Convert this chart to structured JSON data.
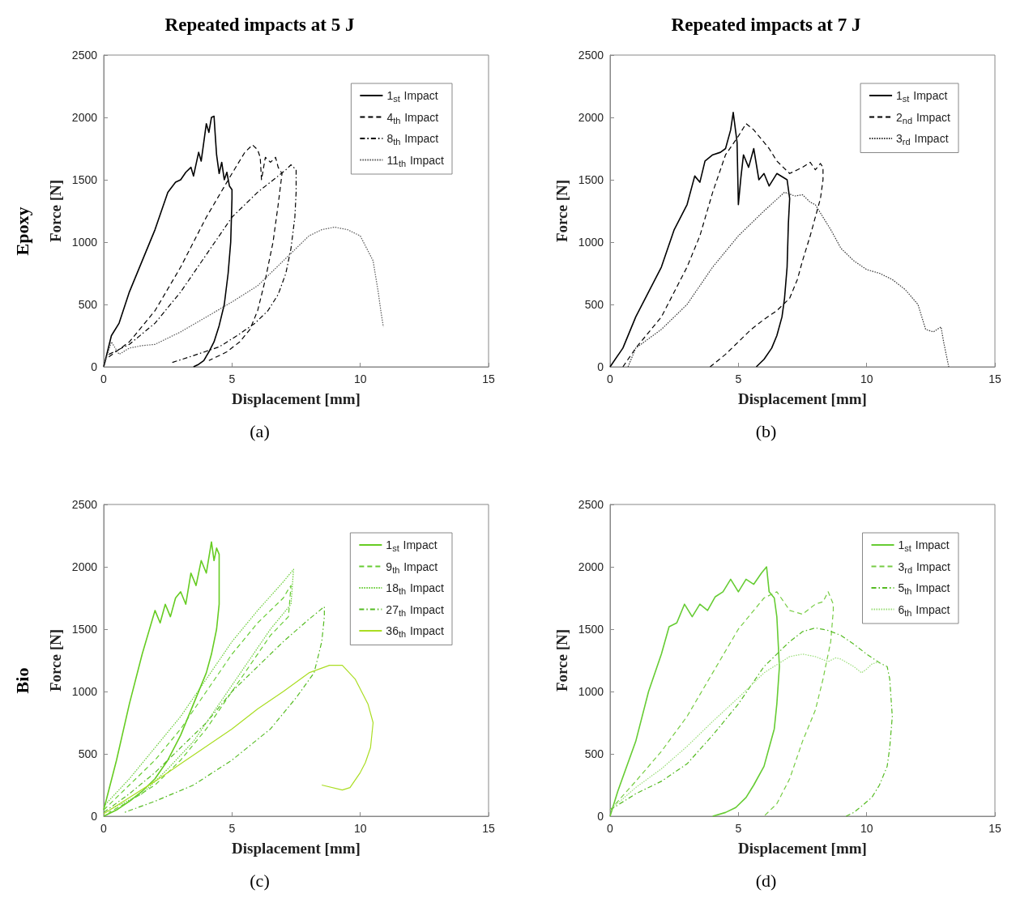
{
  "chart_data": [
    {
      "type": "line",
      "title": "Repeated impacts at 5 J",
      "subtitle": "(a)",
      "annotations": [
        "Epoxy"
      ],
      "xlabel": "Displacement [mm]",
      "ylabel": "Force [N]",
      "xlim": [
        0,
        15
      ],
      "xticks": [
        0,
        5,
        10,
        15
      ],
      "ylim": [
        0,
        2500
      ],
      "yticks": [
        0,
        500,
        1000,
        1500,
        2000,
        2500
      ],
      "grid": false,
      "legend": "top right",
      "marker": "none",
      "series": [
        {
          "name": "1$_{st}$ Impact",
          "color": "#000000",
          "line_style": "solid",
          "x": [
            0,
            0.3,
            0.6,
            1,
            1.5,
            2,
            2.5,
            2.8,
            3,
            3.2,
            3.4,
            3.5,
            3.7,
            3.8,
            3.9,
            4.0,
            4.1,
            4.2,
            4.3,
            4.35,
            4.4,
            4.5,
            4.6,
            4.7,
            4.8,
            4.9,
            5.0,
            5.0,
            4.95,
            4.85,
            4.7,
            4.5,
            4.3,
            4.1,
            3.9,
            3.7,
            3.5
          ],
          "values": [
            0,
            250,
            350,
            600,
            850,
            1100,
            1400,
            1480,
            1500,
            1560,
            1600,
            1530,
            1720,
            1650,
            1800,
            1950,
            1880,
            2000,
            2010,
            1850,
            1700,
            1550,
            1640,
            1500,
            1560,
            1450,
            1420,
            1350,
            1000,
            750,
            500,
            330,
            200,
            120,
            50,
            20,
            0
          ]
        },
        {
          "name": "4$_{th}$ Impact",
          "color": "#000000",
          "line_style": "dashed",
          "x": [
            0.2,
            1,
            2,
            3,
            4,
            5,
            5.5,
            5.8,
            6.0,
            6.1,
            6.15,
            6.3,
            6.5,
            6.7,
            6.8,
            6.95,
            6.8,
            6.6,
            6.3,
            6.0,
            5.7,
            5.3,
            4.8,
            4.1
          ],
          "values": [
            80,
            200,
            450,
            800,
            1200,
            1550,
            1720,
            1780,
            1740,
            1680,
            1500,
            1680,
            1640,
            1680,
            1600,
            1550,
            1300,
            1000,
            700,
            450,
            300,
            200,
            120,
            50
          ]
        },
        {
          "name": "8$_{th}$ Impact",
          "color": "#000000",
          "line_style": "dashdot",
          "x": [
            0.2,
            1,
            2,
            3,
            4,
            5,
            6,
            6.8,
            7.1,
            7.3,
            7.5,
            7.5,
            7.45,
            7.3,
            7.1,
            6.8,
            6.4,
            5.9,
            5.2,
            4.5,
            3.5,
            2.6
          ],
          "values": [
            100,
            180,
            350,
            600,
            900,
            1200,
            1400,
            1530,
            1580,
            1620,
            1580,
            1400,
            1200,
            950,
            750,
            580,
            450,
            350,
            250,
            160,
            90,
            30
          ]
        },
        {
          "name": "11$_{th}$ Impact",
          "color": "#555555",
          "line_style": "dotted",
          "x": [
            0,
            0.3,
            0.6,
            1,
            1.5,
            2,
            3,
            4,
            5,
            6,
            7,
            7.5,
            8,
            8.5,
            9,
            9.5,
            10,
            10.3,
            10.5,
            10.7,
            10.8,
            10.9
          ],
          "values": [
            0,
            200,
            100,
            150,
            170,
            180,
            280,
            400,
            520,
            650,
            850,
            950,
            1050,
            1100,
            1120,
            1100,
            1050,
            930,
            850,
            600,
            450,
            320
          ]
        }
      ]
    },
    {
      "type": "line",
      "title": "Repeated impacts at 7 J",
      "subtitle": "(b)",
      "xlabel": "Displacement [mm]",
      "ylabel": "Force [N]",
      "xlim": [
        0,
        15
      ],
      "xticks": [
        0,
        5,
        10,
        15
      ],
      "ylim": [
        0,
        2500
      ],
      "yticks": [
        0,
        500,
        1000,
        1500,
        2000,
        2500
      ],
      "grid": false,
      "legend": "top right",
      "marker": "none",
      "series": [
        {
          "name": "1$_{st}$ Impact",
          "color": "#000000",
          "line_style": "solid",
          "x": [
            0,
            0.5,
            1,
            1.5,
            2,
            2.5,
            3,
            3.3,
            3.5,
            3.7,
            4,
            4.3,
            4.5,
            4.7,
            4.8,
            4.95,
            5.0,
            5.1,
            5.2,
            5.4,
            5.6,
            5.8,
            6,
            6.2,
            6.5,
            6.9,
            7.0,
            6.95,
            6.9,
            6.8,
            6.7,
            6.5,
            6.3,
            6.0,
            5.7
          ],
          "values": [
            0,
            150,
            400,
            600,
            800,
            1100,
            1300,
            1530,
            1480,
            1650,
            1700,
            1720,
            1750,
            1900,
            2040,
            1800,
            1300,
            1520,
            1700,
            1600,
            1750,
            1500,
            1550,
            1450,
            1550,
            1500,
            1350,
            1150,
            800,
            550,
            400,
            250,
            150,
            60,
            0
          ]
        },
        {
          "name": "2$_{nd}$ Impact",
          "color": "#000000",
          "line_style": "dashed",
          "x": [
            0.5,
            1,
            2,
            3,
            3.5,
            4,
            4.5,
            5,
            5.3,
            5.6,
            5.8,
            6.2,
            6.5,
            7,
            7.3,
            7.5,
            7.8,
            8,
            8.2,
            8.3,
            8.3,
            8.2,
            8,
            7.8,
            7.5,
            7.3,
            7,
            6.5,
            6,
            5.5,
            5,
            4.5,
            3.9
          ],
          "values": [
            0,
            150,
            400,
            800,
            1050,
            1400,
            1700,
            1850,
            1950,
            1900,
            1850,
            1750,
            1650,
            1550,
            1580,
            1600,
            1640,
            1580,
            1630,
            1600,
            1500,
            1350,
            1200,
            1050,
            850,
            700,
            550,
            450,
            380,
            300,
            200,
            100,
            0
          ]
        },
        {
          "name": "3$_{rd}$ Impact",
          "color": "#333333",
          "line_style": "dotted",
          "x": [
            0.7,
            1,
            2,
            3,
            4,
            5,
            6,
            6.8,
            7.2,
            7.5,
            7.8,
            8,
            8.3,
            8.6,
            9,
            9.5,
            10,
            10.5,
            11,
            11.5,
            12,
            12.3,
            12.6,
            12.9,
            13.0,
            13.2
          ],
          "values": [
            0,
            150,
            300,
            500,
            800,
            1050,
            1250,
            1400,
            1370,
            1380,
            1320,
            1300,
            1200,
            1100,
            950,
            850,
            780,
            750,
            700,
            620,
            500,
            300,
            280,
            320,
            200,
            0
          ]
        }
      ]
    },
    {
      "type": "line",
      "subtitle": "(c)",
      "annotations": [
        "Bio"
      ],
      "xlabel": "Displacement [mm]",
      "ylabel": "Force [N]",
      "xlim": [
        0,
        15
      ],
      "xticks": [
        0,
        5,
        10,
        15
      ],
      "ylim": [
        0,
        2500
      ],
      "yticks": [
        0,
        500,
        1000,
        1500,
        2000,
        2500
      ],
      "grid": false,
      "legend": "top right",
      "marker": "none",
      "series": [
        {
          "name": "1$_{st}$ Impact",
          "color": "#66cc22",
          "line_style": "solid",
          "x": [
            0,
            0.5,
            1,
            1.5,
            2,
            2.2,
            2.4,
            2.6,
            2.8,
            3,
            3.2,
            3.4,
            3.6,
            3.8,
            4,
            4.2,
            4.3,
            4.4,
            4.5,
            4.5,
            4.4,
            4.2,
            4,
            3.5,
            3,
            2.5,
            2,
            1.5,
            1,
            0.5,
            0
          ],
          "values": [
            50,
            450,
            900,
            1300,
            1650,
            1550,
            1700,
            1600,
            1750,
            1800,
            1700,
            1950,
            1850,
            2050,
            1950,
            2200,
            2050,
            2150,
            2100,
            1700,
            1500,
            1300,
            1150,
            900,
            650,
            450,
            300,
            200,
            120,
            50,
            0
          ]
        },
        {
          "name": "9$_{th}$ Impact",
          "color": "#66cc33",
          "line_style": "dashed",
          "x": [
            0,
            1,
            2,
            3,
            4,
            5,
            6,
            7,
            7.2,
            7.3,
            7.2,
            6.5,
            6,
            5,
            4,
            3,
            2,
            1,
            0.2
          ],
          "values": [
            50,
            250,
            450,
            700,
            1000,
            1300,
            1550,
            1750,
            1820,
            1850,
            1600,
            1450,
            1300,
            1000,
            700,
            450,
            250,
            120,
            30
          ]
        },
        {
          "name": "18$_{th}$ Impact",
          "color": "#66cc33",
          "line_style": "dotted",
          "x": [
            0,
            1,
            2,
            3,
            4,
            5,
            6,
            7,
            7.4,
            7.3,
            6.5,
            5.5,
            4.5,
            3.5,
            2.5,
            1.5,
            0.3
          ],
          "values": [
            80,
            300,
            550,
            800,
            1100,
            1400,
            1650,
            1880,
            1980,
            1700,
            1500,
            1200,
            900,
            600,
            380,
            180,
            60
          ]
        },
        {
          "name": "27$_{th}$ Impact",
          "color": "#55bb22",
          "line_style": "dashdot",
          "x": [
            0,
            1,
            2,
            3,
            4,
            5,
            6,
            7,
            8,
            8.6,
            8.6,
            8.5,
            8.2,
            7.5,
            6.5,
            5,
            3.5,
            2,
            0.8
          ],
          "values": [
            30,
            180,
            350,
            550,
            750,
            1000,
            1200,
            1400,
            1580,
            1680,
            1600,
            1400,
            1150,
            950,
            700,
            450,
            250,
            120,
            30
          ]
        },
        {
          "name": "36$_{th}$ Impact",
          "color": "#aadd22",
          "line_style": "solid",
          "x": [
            0,
            1,
            2,
            3,
            4,
            5,
            6,
            7,
            8,
            8.8,
            9.3,
            9.8,
            10.3,
            10.5,
            10.4,
            10.2,
            10,
            9.6,
            9.3,
            8.5
          ],
          "values": [
            20,
            150,
            280,
            420,
            560,
            700,
            860,
            1000,
            1150,
            1210,
            1210,
            1100,
            900,
            750,
            550,
            430,
            350,
            230,
            210,
            250
          ]
        }
      ]
    },
    {
      "type": "line",
      "subtitle": "(d)",
      "xlabel": "Displacement [mm]",
      "ylabel": "Force [N]",
      "xlim": [
        0,
        15
      ],
      "xticks": [
        0,
        5,
        10,
        15
      ],
      "ylim": [
        0,
        2500
      ],
      "yticks": [
        0,
        500,
        1000,
        1500,
        2000,
        2500
      ],
      "grid": false,
      "legend": "top right",
      "marker": "none",
      "series": [
        {
          "name": "1$_{st}$ Impact",
          "color": "#66cc33",
          "line_style": "solid",
          "x": [
            0,
            0.3,
            1,
            1.5,
            2,
            2.3,
            2.6,
            2.9,
            3.2,
            3.5,
            3.8,
            4.1,
            4.4,
            4.7,
            5,
            5.3,
            5.6,
            5.9,
            6.1,
            6.2,
            6.4,
            6.5,
            6.6,
            6.5,
            6.4,
            6.2,
            6,
            5.6,
            5.3,
            4.9,
            4.5,
            4
          ],
          "values": [
            0,
            200,
            600,
            1000,
            1300,
            1520,
            1550,
            1700,
            1600,
            1700,
            1650,
            1760,
            1800,
            1900,
            1800,
            1900,
            1860,
            1950,
            2000,
            1800,
            1750,
            1600,
            1200,
            900,
            700,
            550,
            400,
            250,
            150,
            70,
            30,
            0
          ]
        },
        {
          "name": "3$_{rd}$ Impact",
          "color": "#77cc44",
          "line_style": "dashed",
          "x": [
            0,
            1,
            2,
            3,
            4,
            5,
            6,
            6.5,
            7,
            7.5,
            8,
            8.3,
            8.5,
            8.7,
            8.7,
            8.6,
            8.3,
            8,
            7.5,
            7,
            6.5,
            6
          ],
          "values": [
            50,
            280,
            520,
            800,
            1150,
            1500,
            1750,
            1800,
            1650,
            1620,
            1700,
            1720,
            1800,
            1700,
            1650,
            1400,
            1100,
            850,
            600,
            300,
            100,
            0
          ]
        },
        {
          "name": "5$_{th}$ Impact",
          "color": "#55bb22",
          "line_style": "dashdot",
          "x": [
            0,
            1,
            2,
            3,
            4,
            5,
            6,
            7,
            7.5,
            8,
            8.5,
            9,
            9.5,
            10,
            10.5,
            10.8,
            10.9,
            11,
            10.9,
            10.8,
            10.5,
            10.2,
            9.8,
            9.5,
            9.2
          ],
          "values": [
            50,
            180,
            280,
            420,
            650,
            900,
            1200,
            1400,
            1480,
            1510,
            1490,
            1450,
            1380,
            1300,
            1230,
            1200,
            1100,
            800,
            550,
            400,
            250,
            150,
            80,
            30,
            0
          ]
        },
        {
          "name": "6$_{th}$ Impact",
          "color": "#99dd77",
          "line_style": "dotted",
          "x": [
            0,
            1,
            2,
            3,
            4,
            5,
            6,
            7,
            7.5,
            8,
            8.5,
            8.8,
            9,
            9.5,
            9.8,
            10,
            10.2,
            10.5
          ],
          "values": [
            50,
            230,
            380,
            560,
            760,
            950,
            1150,
            1280,
            1300,
            1280,
            1240,
            1270,
            1260,
            1200,
            1150,
            1180,
            1220,
            1240
          ]
        }
      ]
    }
  ]
}
